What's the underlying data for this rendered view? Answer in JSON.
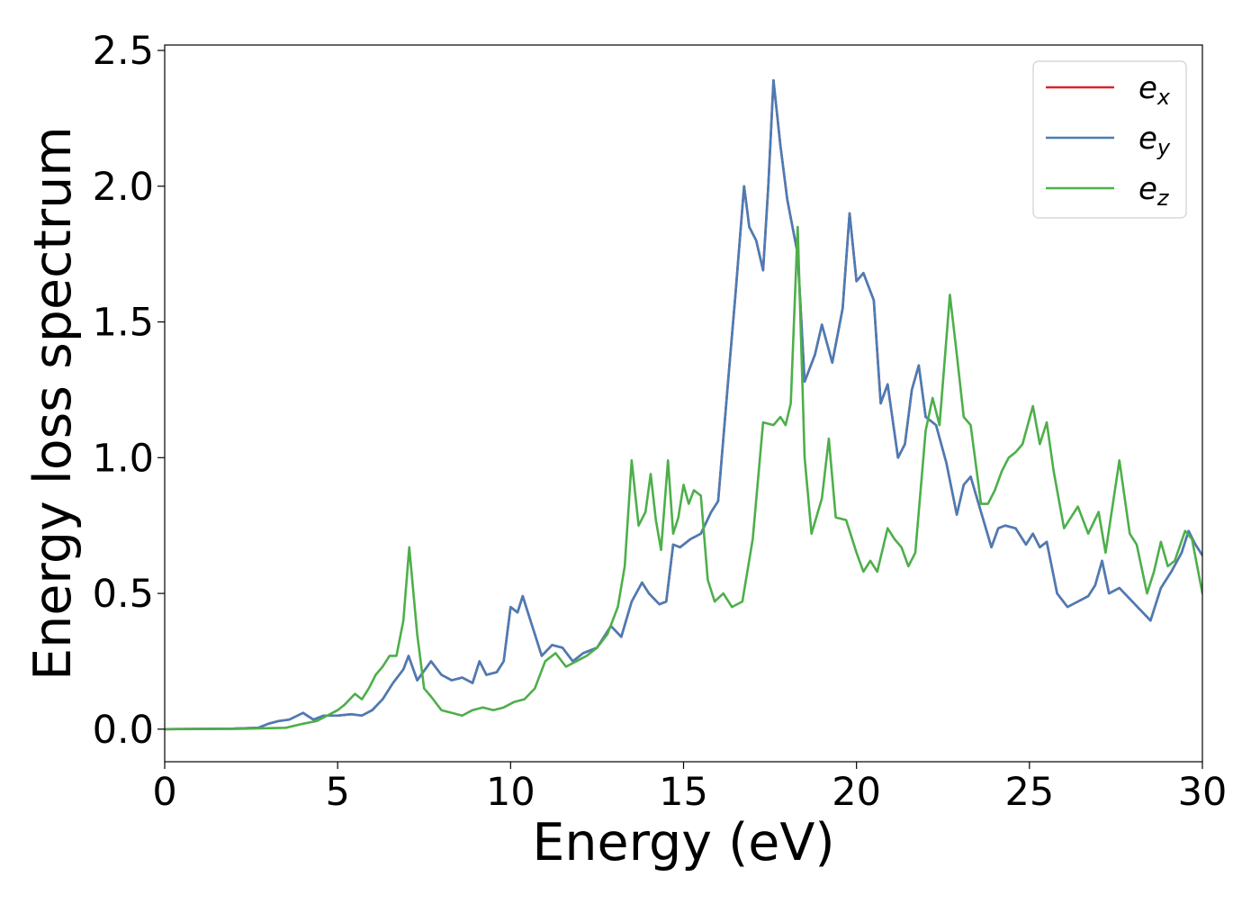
{
  "chart_data": {
    "type": "line",
    "xlabel": "Energy (eV)",
    "ylabel": "Energy loss spectrum",
    "xlim": [
      0,
      30
    ],
    "ylim": [
      -0.12,
      2.52
    ],
    "xticks": [
      0,
      5,
      10,
      15,
      20,
      25,
      30
    ],
    "xtick_labels": [
      "0",
      "5",
      "10",
      "15",
      "20",
      "25",
      "30"
    ],
    "yticks": [
      0.0,
      0.5,
      1.0,
      1.5,
      2.0,
      2.5
    ],
    "ytick_labels": [
      "0.0",
      "0.5",
      "1.0",
      "1.5",
      "2.0",
      "2.5"
    ],
    "grid": false,
    "legend_position": "top-right",
    "series": [
      {
        "name": "e",
        "subscript": "x",
        "color": "#d62728",
        "x": [
          0,
          2,
          2.7,
          3.0,
          3.3,
          3.6,
          4.0,
          4.3,
          4.6,
          5.0,
          5.4,
          5.7,
          6.0,
          6.3,
          6.6,
          6.9,
          7.05,
          7.3,
          7.7,
          8.0,
          8.3,
          8.6,
          8.9,
          9.1,
          9.3,
          9.6,
          9.8,
          10.0,
          10.2,
          10.35,
          10.6,
          10.9,
          11.2,
          11.5,
          11.8,
          12.1,
          12.5,
          12.9,
          13.2,
          13.5,
          13.8,
          14.0,
          14.3,
          14.5,
          14.7,
          14.9,
          15.2,
          15.5,
          15.8,
          16.0,
          16.3,
          16.5,
          16.75,
          16.9,
          17.1,
          17.3,
          17.45,
          17.6,
          17.8,
          18.0,
          18.3,
          18.5,
          18.8,
          19.0,
          19.3,
          19.6,
          19.8,
          20.0,
          20.2,
          20.5,
          20.7,
          20.9,
          21.2,
          21.4,
          21.6,
          21.8,
          22.0,
          22.3,
          22.6,
          22.9,
          23.1,
          23.3,
          23.6,
          23.9,
          24.1,
          24.3,
          24.6,
          24.9,
          25.1,
          25.3,
          25.5,
          25.8,
          26.1,
          26.4,
          26.7,
          26.9,
          27.1,
          27.3,
          27.6,
          27.9,
          28.2,
          28.5,
          28.8,
          29.1,
          29.4,
          29.6,
          29.8,
          30.0
        ],
        "values": [
          0.0,
          0.002,
          0.005,
          0.02,
          0.03,
          0.035,
          0.06,
          0.035,
          0.05,
          0.05,
          0.055,
          0.05,
          0.07,
          0.11,
          0.17,
          0.22,
          0.27,
          0.18,
          0.25,
          0.2,
          0.18,
          0.19,
          0.17,
          0.25,
          0.2,
          0.21,
          0.25,
          0.45,
          0.43,
          0.49,
          0.39,
          0.27,
          0.31,
          0.3,
          0.25,
          0.28,
          0.3,
          0.38,
          0.34,
          0.47,
          0.54,
          0.5,
          0.46,
          0.47,
          0.68,
          0.67,
          0.7,
          0.72,
          0.8,
          0.84,
          1.3,
          1.6,
          2.0,
          1.85,
          1.8,
          1.69,
          2.0,
          2.39,
          2.15,
          1.95,
          1.75,
          1.28,
          1.38,
          1.49,
          1.35,
          1.55,
          1.9,
          1.65,
          1.68,
          1.58,
          1.2,
          1.27,
          1.0,
          1.05,
          1.25,
          1.34,
          1.15,
          1.12,
          0.98,
          0.79,
          0.9,
          0.93,
          0.8,
          0.67,
          0.74,
          0.75,
          0.74,
          0.68,
          0.72,
          0.67,
          0.69,
          0.5,
          0.45,
          0.47,
          0.49,
          0.53,
          0.62,
          0.5,
          0.52,
          0.48,
          0.44,
          0.4,
          0.52,
          0.58,
          0.65,
          0.73,
          0.68,
          0.64
        ]
      },
      {
        "name": "e",
        "subscript": "y",
        "color": "#4a7cb6",
        "x": [
          0,
          2,
          2.7,
          3.0,
          3.3,
          3.6,
          4.0,
          4.3,
          4.6,
          5.0,
          5.4,
          5.7,
          6.0,
          6.3,
          6.6,
          6.9,
          7.05,
          7.3,
          7.7,
          8.0,
          8.3,
          8.6,
          8.9,
          9.1,
          9.3,
          9.6,
          9.8,
          10.0,
          10.2,
          10.35,
          10.6,
          10.9,
          11.2,
          11.5,
          11.8,
          12.1,
          12.5,
          12.9,
          13.2,
          13.5,
          13.8,
          14.0,
          14.3,
          14.5,
          14.7,
          14.9,
          15.2,
          15.5,
          15.8,
          16.0,
          16.3,
          16.5,
          16.75,
          16.9,
          17.1,
          17.3,
          17.45,
          17.6,
          17.8,
          18.0,
          18.3,
          18.5,
          18.8,
          19.0,
          19.3,
          19.6,
          19.8,
          20.0,
          20.2,
          20.5,
          20.7,
          20.9,
          21.2,
          21.4,
          21.6,
          21.8,
          22.0,
          22.3,
          22.6,
          22.9,
          23.1,
          23.3,
          23.6,
          23.9,
          24.1,
          24.3,
          24.6,
          24.9,
          25.1,
          25.3,
          25.5,
          25.8,
          26.1,
          26.4,
          26.7,
          26.9,
          27.1,
          27.3,
          27.6,
          27.9,
          28.2,
          28.5,
          28.8,
          29.1,
          29.4,
          29.6,
          29.8,
          30.0
        ],
        "values": [
          0.0,
          0.002,
          0.005,
          0.02,
          0.03,
          0.035,
          0.06,
          0.035,
          0.05,
          0.05,
          0.055,
          0.05,
          0.07,
          0.11,
          0.17,
          0.22,
          0.27,
          0.18,
          0.25,
          0.2,
          0.18,
          0.19,
          0.17,
          0.25,
          0.2,
          0.21,
          0.25,
          0.45,
          0.43,
          0.49,
          0.39,
          0.27,
          0.31,
          0.3,
          0.25,
          0.28,
          0.3,
          0.38,
          0.34,
          0.47,
          0.54,
          0.5,
          0.46,
          0.47,
          0.68,
          0.67,
          0.7,
          0.72,
          0.8,
          0.84,
          1.3,
          1.6,
          2.0,
          1.85,
          1.8,
          1.69,
          2.0,
          2.39,
          2.15,
          1.95,
          1.75,
          1.28,
          1.38,
          1.49,
          1.35,
          1.55,
          1.9,
          1.65,
          1.68,
          1.58,
          1.2,
          1.27,
          1.0,
          1.05,
          1.25,
          1.34,
          1.15,
          1.12,
          0.98,
          0.79,
          0.9,
          0.93,
          0.8,
          0.67,
          0.74,
          0.75,
          0.74,
          0.68,
          0.72,
          0.67,
          0.69,
          0.5,
          0.45,
          0.47,
          0.49,
          0.53,
          0.62,
          0.5,
          0.52,
          0.48,
          0.44,
          0.4,
          0.52,
          0.58,
          0.65,
          0.73,
          0.68,
          0.64
        ]
      },
      {
        "name": "e",
        "subscript": "z",
        "color": "#4daf4a",
        "x": [
          0,
          2,
          3.5,
          4.0,
          4.4,
          4.7,
          5.0,
          5.2,
          5.5,
          5.7,
          5.9,
          6.1,
          6.3,
          6.5,
          6.7,
          6.9,
          7.07,
          7.3,
          7.5,
          7.7,
          8.0,
          8.3,
          8.6,
          8.9,
          9.2,
          9.5,
          9.8,
          10.1,
          10.4,
          10.7,
          11.0,
          11.3,
          11.6,
          11.9,
          12.2,
          12.5,
          12.8,
          13.1,
          13.3,
          13.5,
          13.7,
          13.9,
          14.05,
          14.2,
          14.35,
          14.55,
          14.7,
          14.85,
          15.0,
          15.15,
          15.3,
          15.5,
          15.7,
          15.9,
          16.15,
          16.4,
          16.7,
          17.0,
          17.3,
          17.6,
          17.8,
          17.95,
          18.1,
          18.3,
          18.5,
          18.7,
          19.0,
          19.2,
          19.4,
          19.7,
          20.0,
          20.2,
          20.4,
          20.6,
          20.9,
          21.1,
          21.3,
          21.5,
          21.7,
          22.0,
          22.2,
          22.4,
          22.7,
          22.9,
          23.1,
          23.3,
          23.6,
          23.8,
          24.0,
          24.2,
          24.4,
          24.6,
          24.8,
          25.1,
          25.3,
          25.5,
          25.7,
          26.0,
          26.4,
          26.7,
          27.0,
          27.2,
          27.6,
          27.9,
          28.1,
          28.4,
          28.6,
          28.8,
          29.0,
          29.2,
          29.5,
          29.7,
          30.0
        ],
        "values": [
          0.0,
          0.001,
          0.005,
          0.02,
          0.03,
          0.05,
          0.07,
          0.09,
          0.13,
          0.11,
          0.15,
          0.2,
          0.23,
          0.27,
          0.27,
          0.4,
          0.67,
          0.35,
          0.15,
          0.12,
          0.07,
          0.06,
          0.05,
          0.07,
          0.08,
          0.07,
          0.08,
          0.1,
          0.11,
          0.15,
          0.25,
          0.28,
          0.23,
          0.25,
          0.27,
          0.3,
          0.35,
          0.45,
          0.6,
          0.99,
          0.75,
          0.8,
          0.94,
          0.77,
          0.66,
          0.99,
          0.72,
          0.78,
          0.9,
          0.83,
          0.88,
          0.86,
          0.55,
          0.47,
          0.5,
          0.45,
          0.47,
          0.7,
          1.13,
          1.12,
          1.15,
          1.12,
          1.2,
          1.85,
          1.0,
          0.72,
          0.85,
          1.07,
          0.78,
          0.77,
          0.65,
          0.58,
          0.62,
          0.58,
          0.74,
          0.7,
          0.67,
          0.6,
          0.65,
          1.1,
          1.22,
          1.12,
          1.6,
          1.38,
          1.15,
          1.12,
          0.83,
          0.83,
          0.88,
          0.95,
          1.0,
          1.02,
          1.05,
          1.19,
          1.05,
          1.13,
          0.95,
          0.74,
          0.82,
          0.72,
          0.8,
          0.65,
          0.99,
          0.72,
          0.68,
          0.5,
          0.58,
          0.69,
          0.6,
          0.62,
          0.73,
          0.7,
          0.5
        ]
      }
    ]
  }
}
